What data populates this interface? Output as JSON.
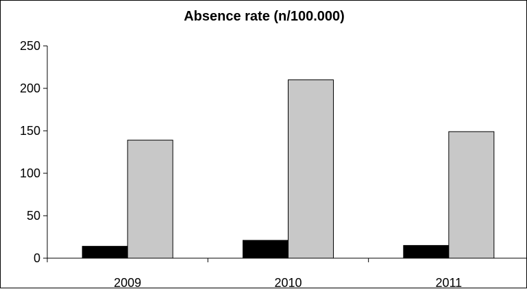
{
  "chart_data": {
    "type": "bar",
    "title": "Absence rate (n/100.000)",
    "categories": [
      "2009",
      "2010",
      "2011"
    ],
    "series": [
      {
        "color": "#000000",
        "values": [
          14,
          21,
          15
        ]
      },
      {
        "color": "#c8c8c8",
        "values": [
          139,
          210,
          149
        ]
      }
    ],
    "ylim": [
      0,
      250
    ],
    "yticks": [
      0,
      50,
      100,
      150,
      200,
      250
    ],
    "grid": false,
    "legend": "none"
  }
}
